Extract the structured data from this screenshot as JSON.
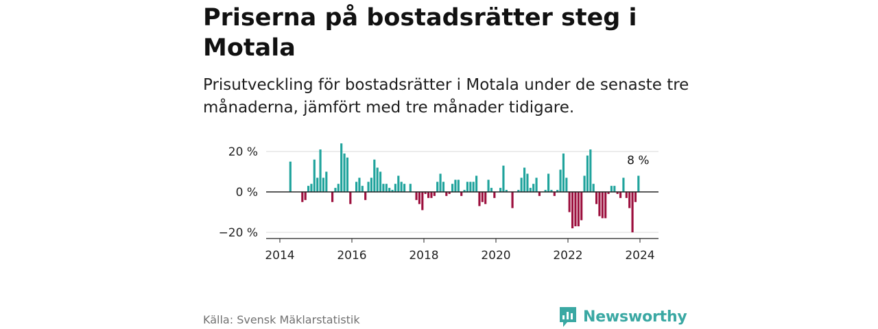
{
  "header": {
    "title": "Priserna på bostadsrätter steg i Motala",
    "subtitle": "Prisutveckling för bostadsrätter i Motala under de senaste tre månaderna, jämfört med tre månader tidigare."
  },
  "footer": {
    "source": "Källa: Svensk Mäklarstatistik",
    "brand": "Newsworthy",
    "brand_icon": "bar-chart-logo-icon"
  },
  "colors": {
    "positive": "#1fa39c",
    "negative": "#9c0f3d",
    "grid": "#d8d8d8",
    "axis": "#222222",
    "brand": "#3aa8a3"
  },
  "chart_data": {
    "type": "bar",
    "title": "Priserna på bostadsrätter steg i Motala",
    "subtitle": "Prisutveckling för bostadsrätter i Motala under de senaste tre månaderna, jämfört med tre månader tidigare.",
    "xlabel": "",
    "ylabel": "",
    "ylim": [
      -22,
      24
    ],
    "xlim": [
      2013.75,
      2024.6
    ],
    "y_ticks": [
      20,
      0,
      -20
    ],
    "y_tick_labels": [
      "20 %",
      "0 %",
      "−20 %"
    ],
    "x_ticks": [
      2014,
      2016,
      2018,
      2020,
      2022,
      2024
    ],
    "x_tick_labels": [
      "2014",
      "2016",
      "2018",
      "2020",
      "2022",
      "2024"
    ],
    "grid": true,
    "annotation": {
      "label": "8 %",
      "value": 8
    },
    "series": [
      {
        "name": "Prisutveckling",
        "start": {
          "year": 2014,
          "month": 4
        },
        "values": [
          15,
          null,
          null,
          null,
          -5,
          -4,
          3,
          4,
          16,
          7,
          21,
          7,
          10,
          null,
          -5,
          2,
          4,
          24,
          19,
          17,
          -6,
          null,
          5,
          7,
          3,
          -4,
          5,
          7,
          16,
          12,
          10,
          4,
          4,
          2,
          1,
          4,
          8,
          5,
          4,
          null,
          4,
          null,
          -4,
          -6,
          -9,
          -1,
          -3,
          -3,
          -2,
          5,
          9,
          5,
          -2,
          -1,
          4,
          6,
          6,
          -2,
          1,
          5,
          5,
          5,
          8,
          -7,
          -5,
          -6,
          6,
          2,
          -3,
          null,
          2,
          13,
          1,
          null,
          -8,
          null,
          1,
          7,
          12,
          9,
          2,
          4,
          7,
          -2,
          null,
          1,
          9,
          1,
          -2,
          1,
          11,
          19,
          7,
          -10,
          -18,
          -17,
          -17,
          -14,
          8,
          18,
          21,
          4,
          -6,
          -12,
          -13,
          -13,
          -1,
          3,
          3,
          -1,
          -3,
          7,
          -3,
          -8,
          -20,
          -5,
          8
        ]
      }
    ]
  }
}
